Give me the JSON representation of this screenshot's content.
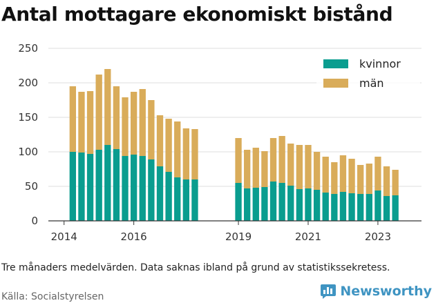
{
  "title": "Antal mottagare ekonomiskt bistånd",
  "note": "Tre månaders medelvärden. Data saknas ibland på grund av statistikssekretess.",
  "source": "Källa: Socialstyrelsen",
  "brand": "Newsworthy",
  "colors": {
    "kvinnor": "#0a9d8f",
    "man": "#d9ac5a",
    "brand": "#3f94c2",
    "grid": "#dddddd"
  },
  "chart_data": {
    "type": "bar",
    "stacked": true,
    "ylim": [
      0,
      250
    ],
    "yticks": [
      0,
      50,
      100,
      150,
      200,
      250
    ],
    "xlim": [
      2013.55,
      2024.25
    ],
    "xticks": [
      2014,
      2016,
      2019,
      2021,
      2023
    ],
    "legend_position": "top-right",
    "grid": "horizontal",
    "x": [
      2014.25,
      2014.5,
      2014.75,
      2015.0,
      2015.25,
      2015.5,
      2015.75,
      2016.0,
      2016.25,
      2016.5,
      2016.75,
      2017.0,
      2017.25,
      2017.5,
      2017.75,
      2019.0,
      2019.25,
      2019.5,
      2019.75,
      2020.0,
      2020.25,
      2020.5,
      2020.75,
      2021.0,
      2021.25,
      2021.5,
      2021.75,
      2022.0,
      2022.25,
      2022.5,
      2022.75,
      2023.0,
      2023.25,
      2023.5
    ],
    "series": [
      {
        "name": "kvinnor",
        "color": "#0a9d8f",
        "values": [
          100,
          99,
          97,
          103,
          110,
          104,
          94,
          96,
          94,
          89,
          79,
          71,
          63,
          60,
          60,
          55,
          47,
          48,
          49,
          57,
          55,
          51,
          46,
          47,
          45,
          41,
          39,
          42,
          40,
          39,
          39,
          44,
          36,
          37
        ]
      },
      {
        "name": "män",
        "color": "#d9ac5a",
        "values": [
          95,
          88,
          91,
          109,
          110,
          91,
          85,
          91,
          97,
          86,
          74,
          77,
          81,
          74,
          73,
          65,
          56,
          58,
          52,
          63,
          68,
          61,
          64,
          63,
          55,
          52,
          46,
          53,
          50,
          42,
          44,
          49,
          43,
          37
        ]
      }
    ]
  }
}
